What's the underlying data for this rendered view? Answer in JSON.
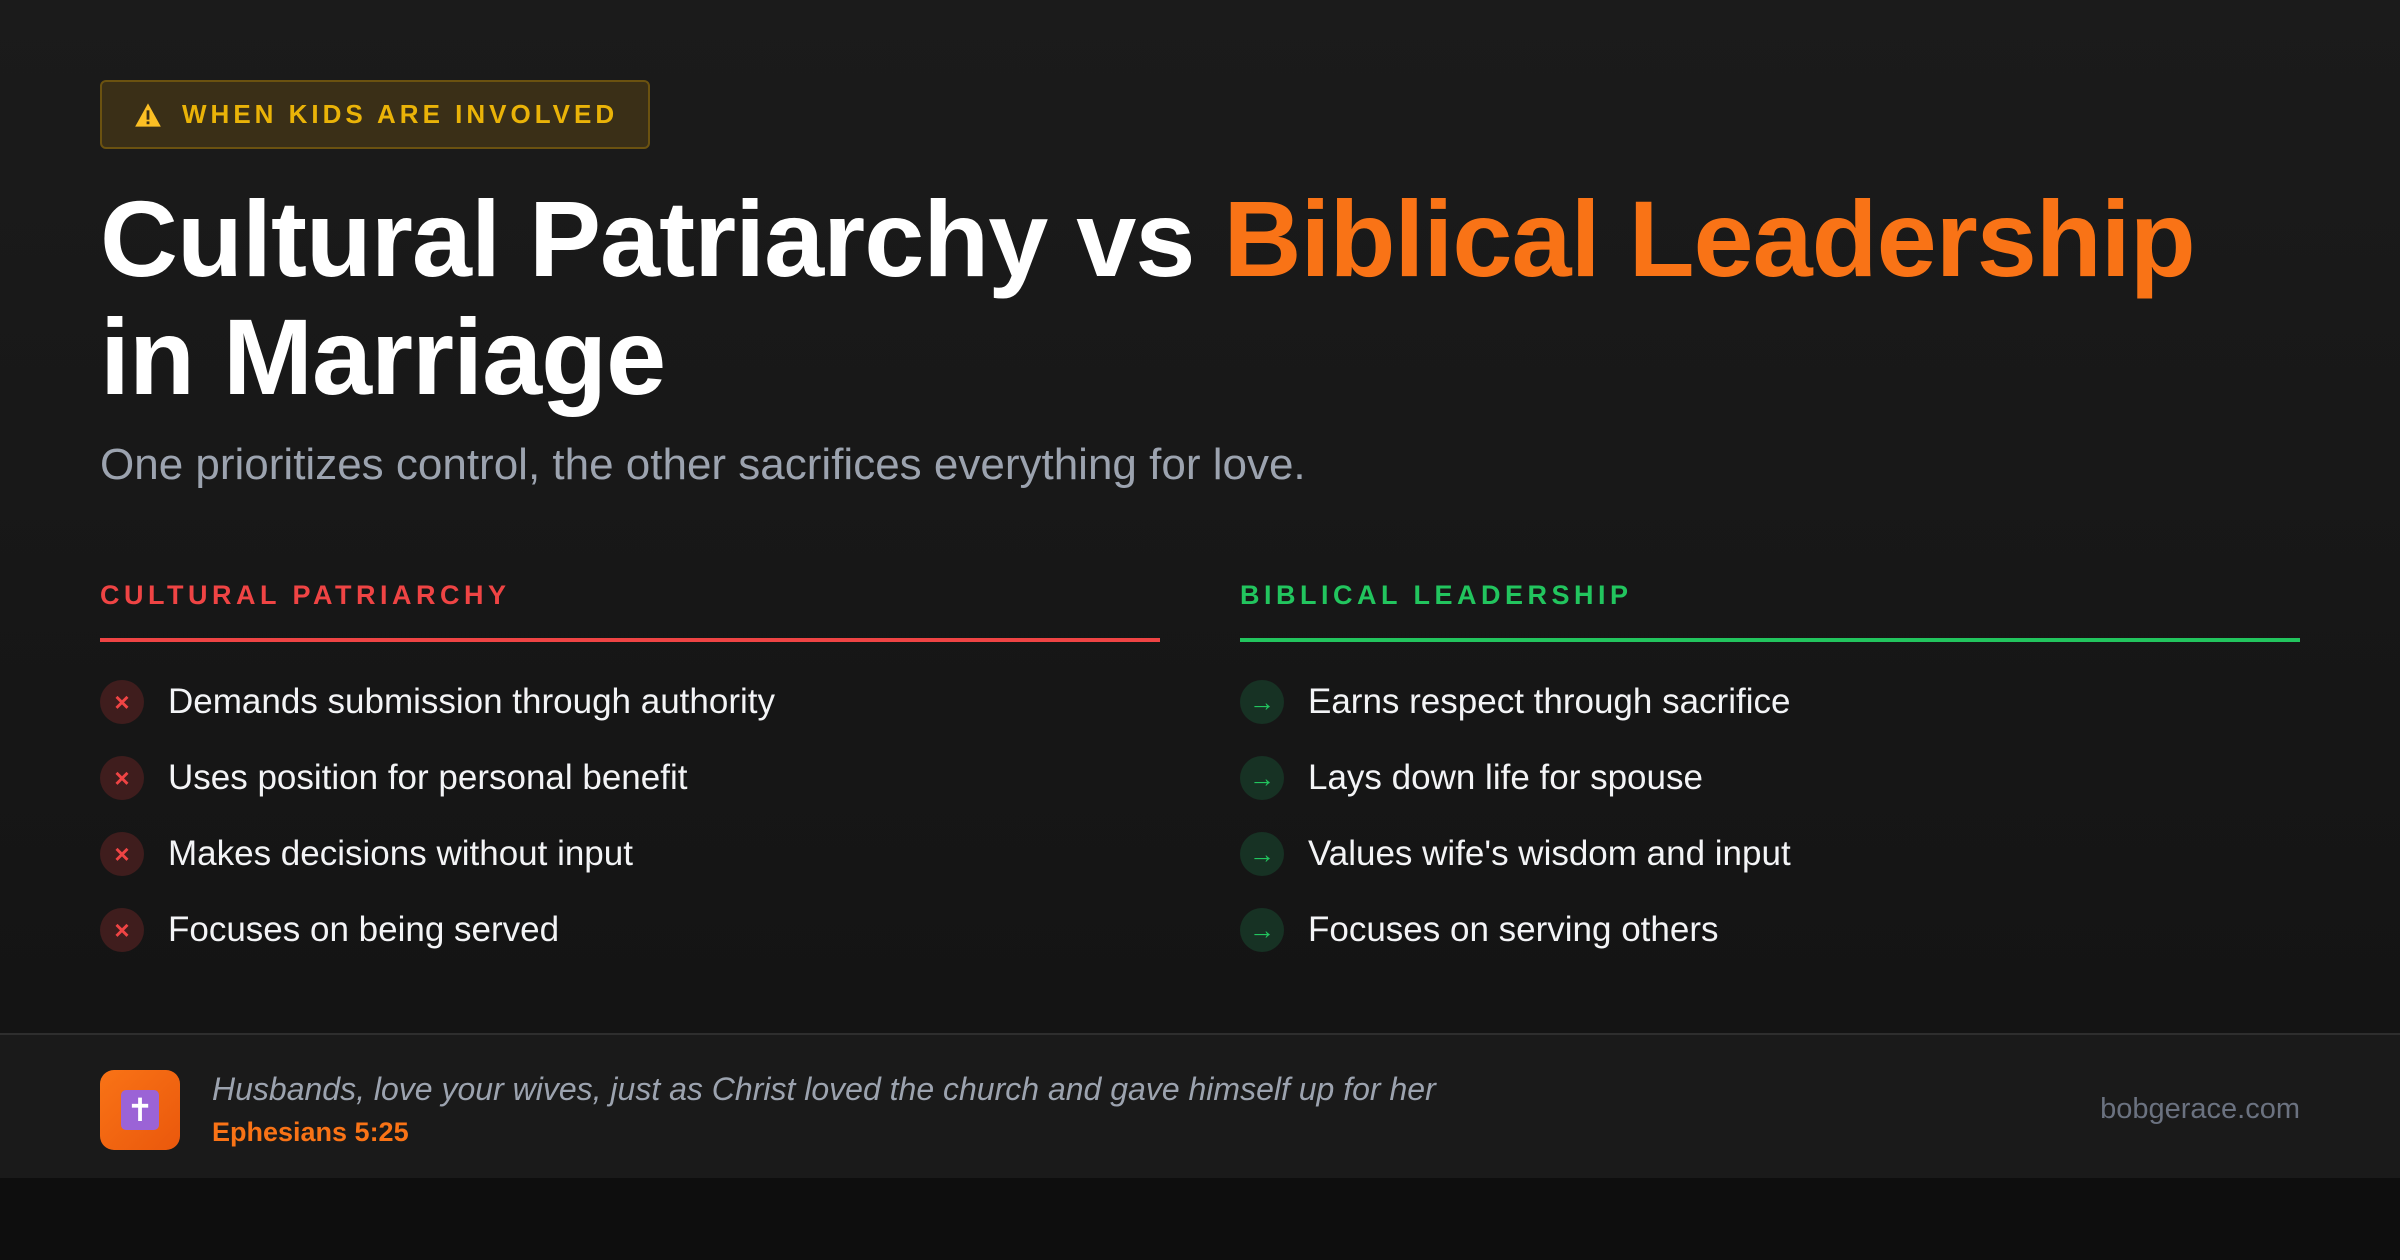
{
  "badge": {
    "icon": "warning-triangle-icon",
    "label": "WHEN KIDS ARE INVOLVED",
    "color": "#eab308"
  },
  "title": {
    "part1": "Cultural Patriarchy vs ",
    "highlight": "Biblical Leadership",
    "part2": "in Marriage",
    "accent": "#f97316"
  },
  "subtitle": "One prioritizes control, the other sacrifices everything for love.",
  "columns": [
    {
      "heading": "CULTURAL PATRIARCHY",
      "color": "#ef4444",
      "icon": "x-icon",
      "icon_glyph": "×",
      "items": [
        "Demands submission through authority",
        "Uses position for personal benefit",
        "Makes decisions without input",
        "Focuses on being served"
      ]
    },
    {
      "heading": "BIBLICAL LEADERSHIP",
      "color": "#22c55e",
      "icon": "arrow-right-icon",
      "icon_glyph": "→",
      "items": [
        "Earns respect through sacrifice",
        "Lays down life for spouse",
        "Values wife's wisdom and input",
        "Focuses on serving others"
      ]
    }
  ],
  "footer": {
    "icon": "cross-icon",
    "icon_glyph": "✝",
    "quote": "Husbands, love your wives, just as Christ loved the church and gave himself up for her",
    "reference": "Ephesians 5:25",
    "site": "bobgerace.com"
  }
}
